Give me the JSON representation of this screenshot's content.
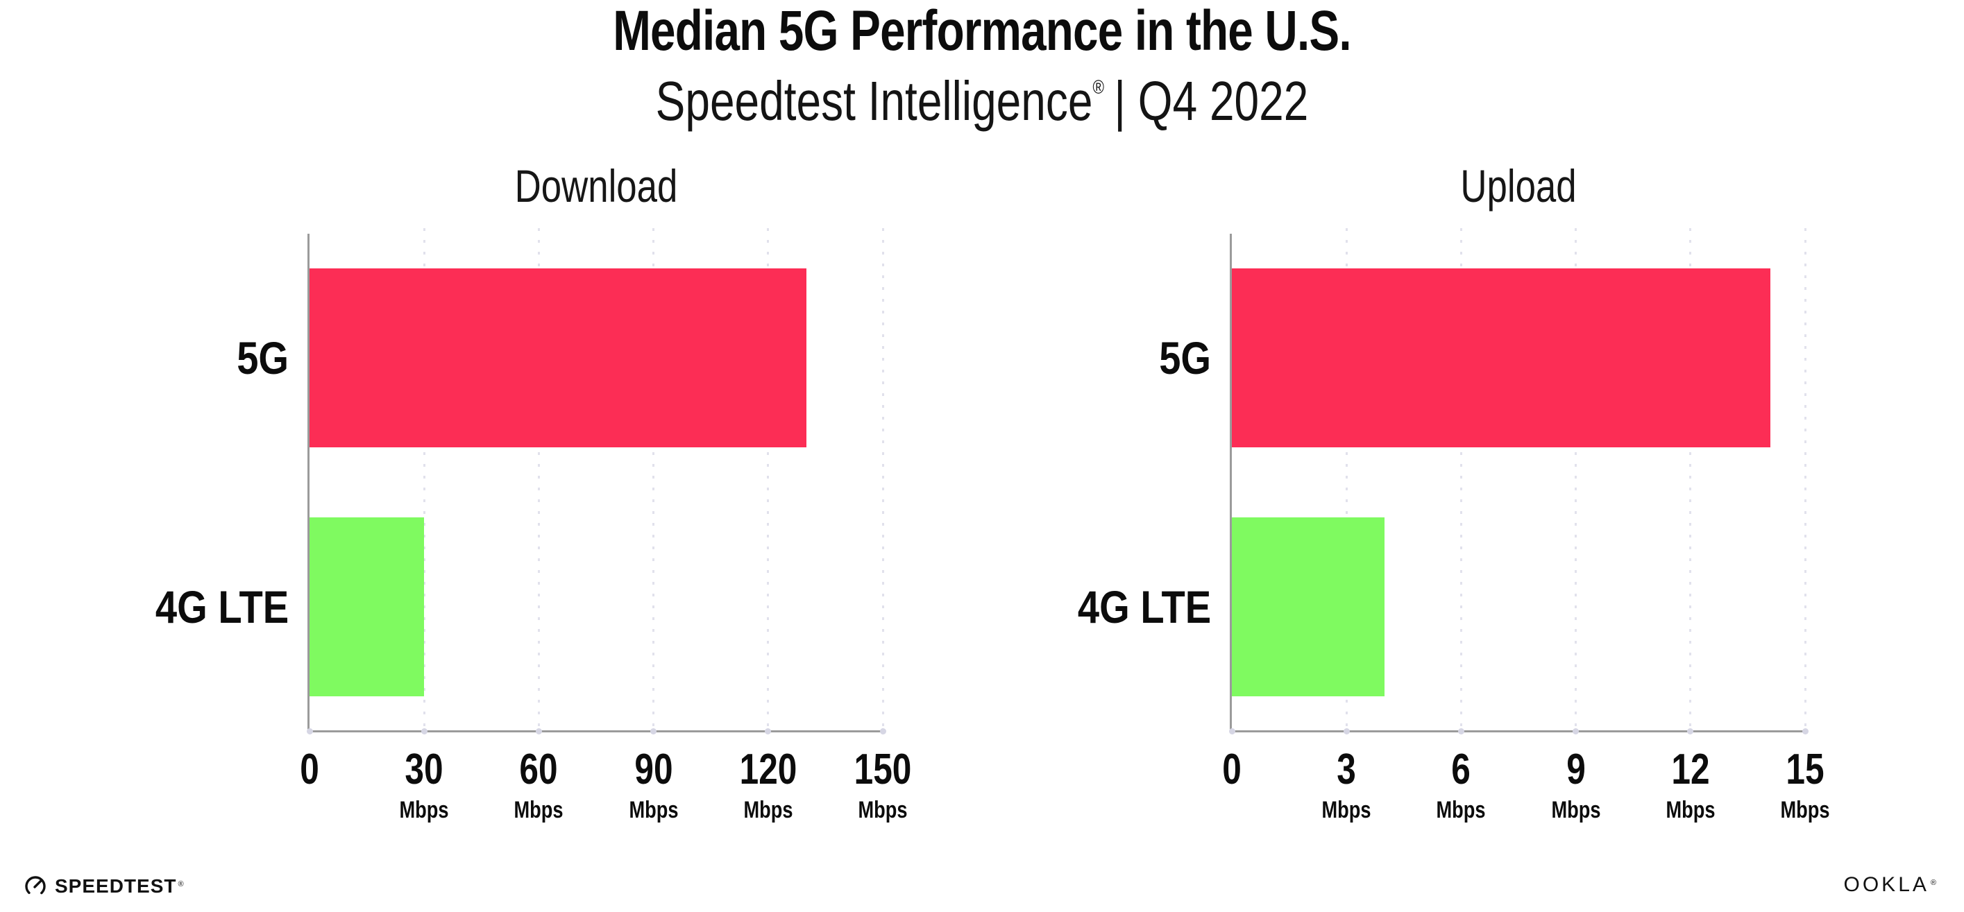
{
  "page": {
    "background": "#ffffff"
  },
  "header": {
    "title": "Median 5G Performance in the U.S.",
    "subtitle": {
      "brand": "Speedtest Intelligence",
      "reg": "®",
      "rest": "| Q4 2022"
    }
  },
  "colors": {
    "bar_5g": "#fc2d55",
    "bar_4g_lte": "#7ffa60",
    "axis": "#9b9b9b",
    "gridline": "#e1e1ec",
    "text": "#0c0c0c"
  },
  "chart_data": [
    {
      "type": "bar",
      "orientation": "horizontal",
      "title": "Download",
      "categories": [
        "5G",
        "4G LTE"
      ],
      "values": [
        130,
        30
      ],
      "unit": "Mbps",
      "xlim": [
        0,
        150
      ],
      "xticks": [
        0,
        30,
        60,
        90,
        120,
        150
      ],
      "bar_colors": [
        "#fc2d55",
        "#7ffa60"
      ],
      "grid": "vertical-dotted",
      "legend": "none"
    },
    {
      "type": "bar",
      "orientation": "horizontal",
      "title": "Upload",
      "categories": [
        "5G",
        "4G LTE"
      ],
      "values": [
        14.1,
        4
      ],
      "unit": "Mbps",
      "xlim": [
        0,
        15
      ],
      "xticks": [
        0,
        3,
        6,
        9,
        12,
        15
      ],
      "bar_colors": [
        "#fc2d55",
        "#7ffa60"
      ],
      "grid": "vertical-dotted",
      "legend": "none"
    }
  ],
  "footer": {
    "speedtest": {
      "label": "SPEEDTEST",
      "reg": "®"
    },
    "ookla": {
      "label": "OOKLA",
      "reg": "®"
    }
  }
}
